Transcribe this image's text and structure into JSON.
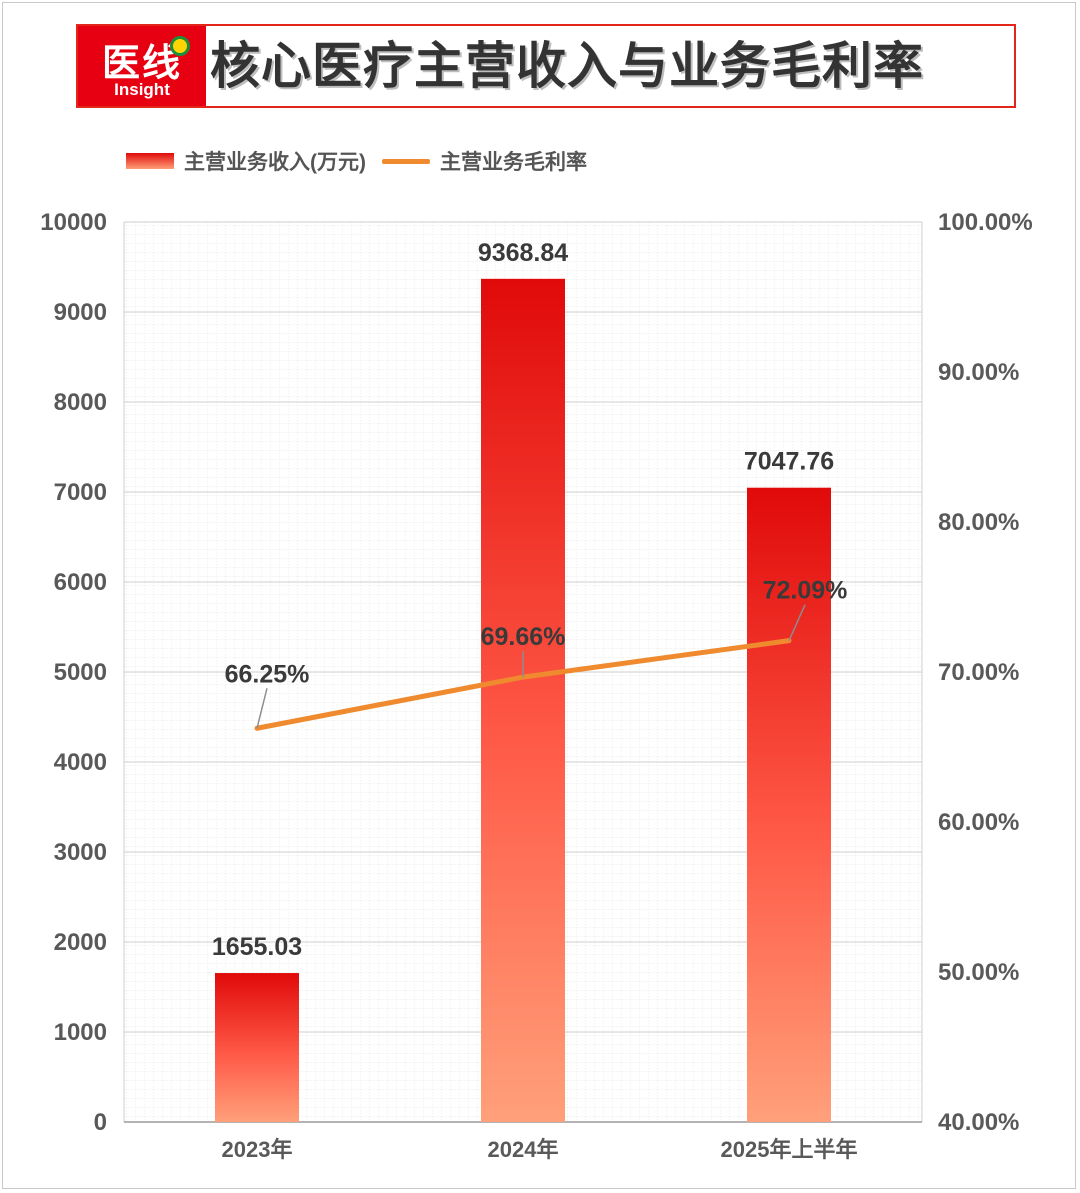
{
  "title": "核心医疗主营收入与业务毛利率",
  "logo": {
    "cn": "医线",
    "en": "Insight"
  },
  "colors": {
    "bar_top": "#e00a0a",
    "bar_bottom": "#ffa07a",
    "line": "#ef8a2e",
    "accent": "#e60012"
  },
  "chart_data": {
    "type": "bar",
    "title": "核心医疗主营收入与业务毛利率",
    "categories": [
      "2023年",
      "2024年",
      "2025年上半年"
    ],
    "series": [
      {
        "name": "主营业务收入(万元)",
        "type": "bar",
        "axis": "left",
        "values": [
          1655.03,
          9368.84,
          7047.76
        ],
        "labels": [
          "1655.03",
          "9368.84",
          "7047.76"
        ]
      },
      {
        "name": "主营业务毛利率",
        "type": "line",
        "axis": "right",
        "values": [
          66.25,
          69.66,
          72.09
        ],
        "labels": [
          "66.25%",
          "69.66%",
          "72.09%"
        ]
      }
    ],
    "y_left": {
      "range": [
        0,
        10000
      ],
      "ticks": [
        "0",
        "1000",
        "2000",
        "3000",
        "4000",
        "5000",
        "6000",
        "7000",
        "8000",
        "9000",
        "10000"
      ]
    },
    "y_right": {
      "range": [
        40,
        100
      ],
      "ticks": [
        "40.00%",
        "50.00%",
        "60.00%",
        "70.00%",
        "80.00%",
        "90.00%",
        "100.00%"
      ]
    },
    "grid": true,
    "legend": "top-left"
  }
}
